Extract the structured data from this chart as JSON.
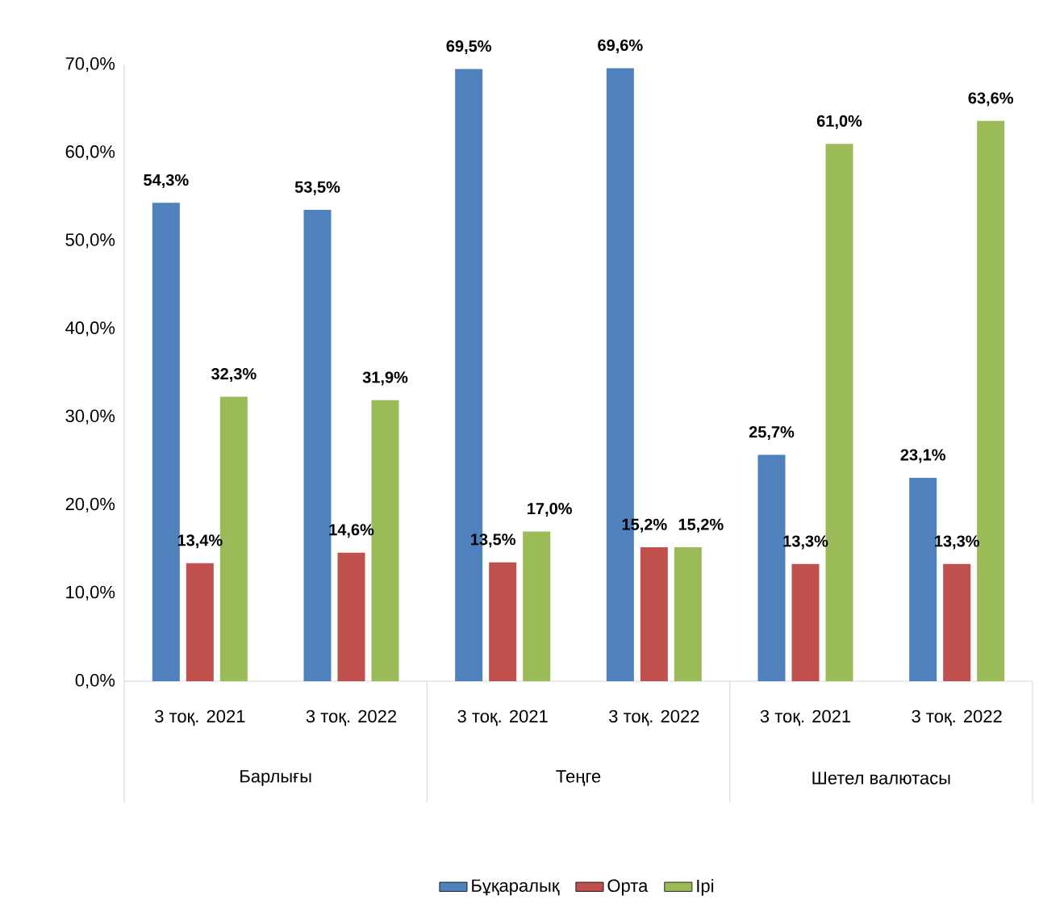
{
  "chart_data": {
    "type": "bar",
    "categories": [
      "3 тоқ. 2021",
      "3 тоқ. 2022",
      "3 тоқ. 2021",
      "3 тоқ. 2022",
      "3 тоқ. 2021",
      "3 тоқ. 2022"
    ],
    "series": [
      {
        "name": "Бұқаралық",
        "color": "#4f81bd",
        "values": [
          54.3,
          53.5,
          69.5,
          69.6,
          25.7,
          23.1
        ],
        "value_labels": [
          "54,3%",
          "53,5%",
          "69,5%",
          "69,6%",
          "25,7%",
          "23,1%"
        ]
      },
      {
        "name": "Орта",
        "color": "#c0504d",
        "values": [
          13.4,
          14.6,
          13.5,
          15.2,
          13.3,
          13.3
        ],
        "value_labels": [
          "13,4%",
          "14,6%",
          "13,5%",
          "15,2%",
          "13,3%",
          "13,3%"
        ]
      },
      {
        "name": "Ірі",
        "color": "#9bbb59",
        "values": [
          32.3,
          31.9,
          17.0,
          15.2,
          61.0,
          63.6
        ],
        "value_labels": [
          "32,3%",
          "31,9%",
          "17,0%",
          "15,2%",
          "61,0%",
          "63,6%"
        ]
      }
    ],
    "annotations": [
      "Барлығы",
      "Теңге",
      "Шетел валютасы"
    ],
    "ylim": [
      0,
      70
    ],
    "yticks": [
      {
        "value": 0,
        "label": "0,0%"
      },
      {
        "value": 10,
        "label": "10,0%"
      },
      {
        "value": 20,
        "label": "20,0%"
      },
      {
        "value": 30,
        "label": "30,0%"
      },
      {
        "value": 40,
        "label": "40,0%"
      },
      {
        "value": 50,
        "label": "50,0%"
      },
      {
        "value": 60,
        "label": "60,0%"
      },
      {
        "value": 70,
        "label": "70,0%"
      }
    ],
    "grid": false,
    "legend": "bottom"
  }
}
